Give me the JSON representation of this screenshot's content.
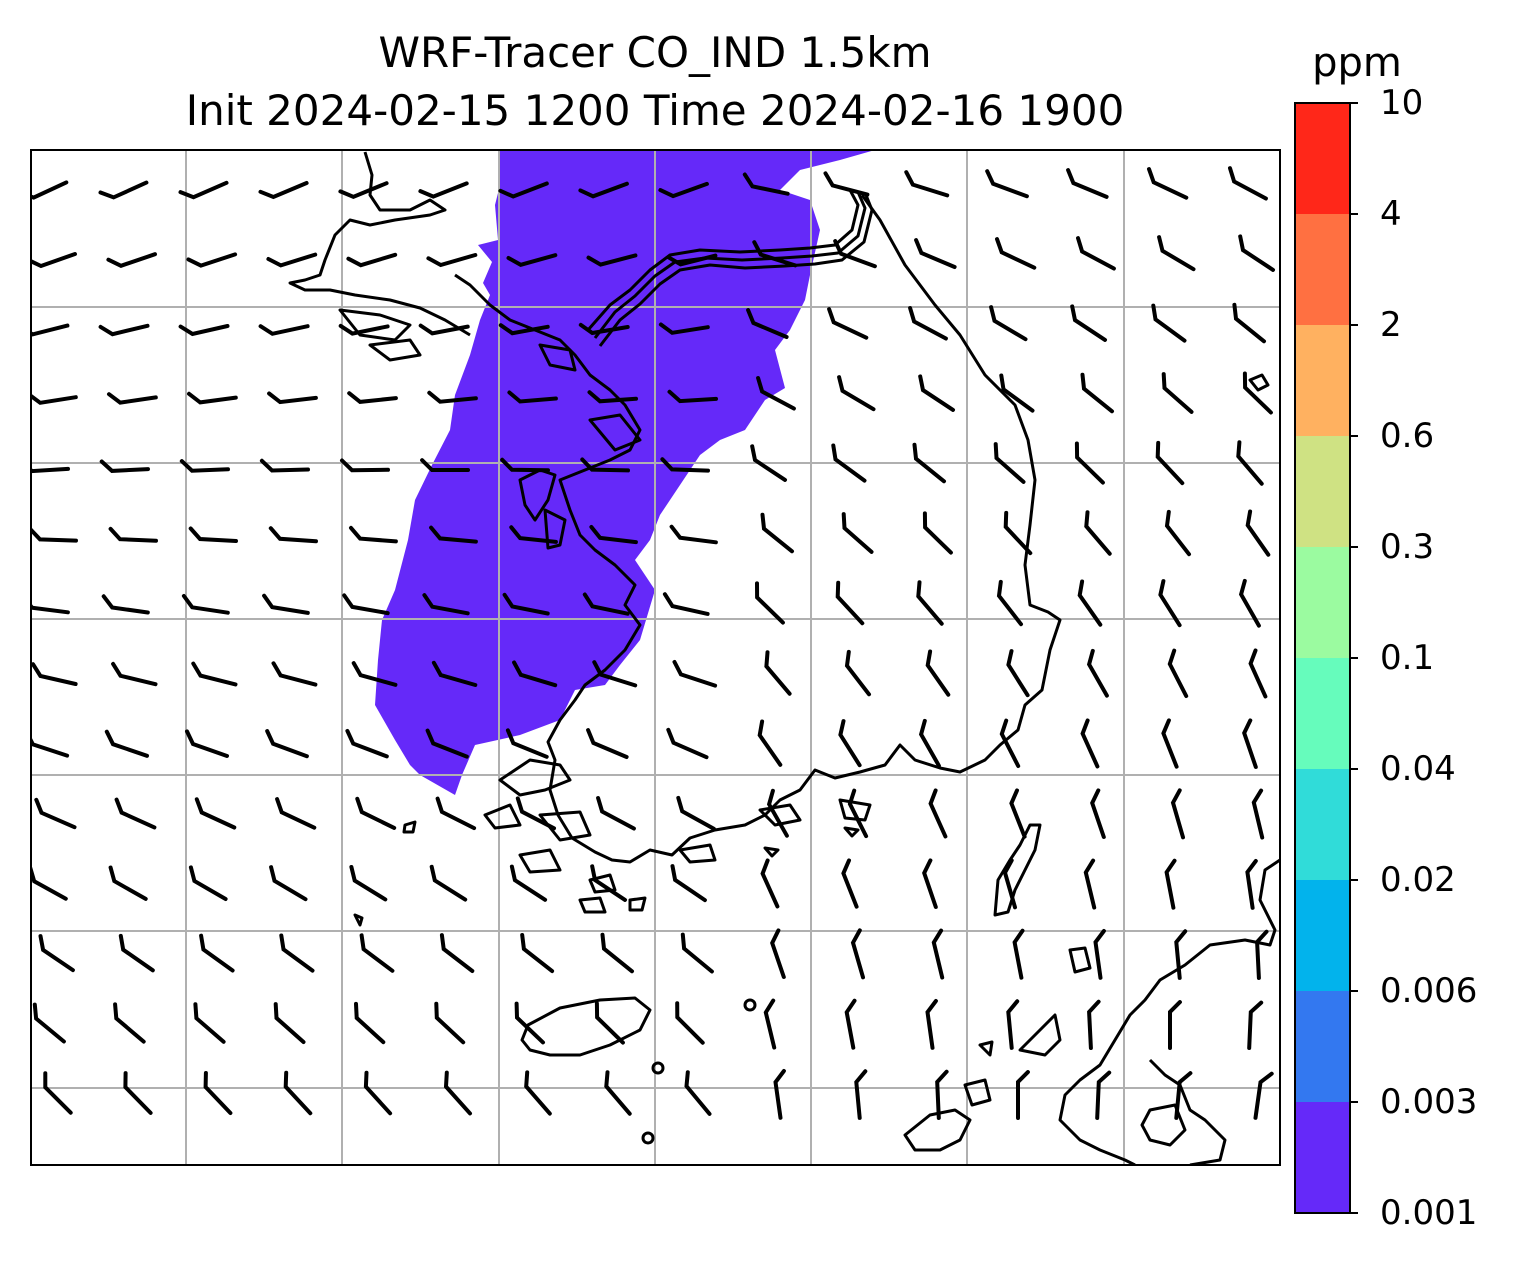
{
  "figure": {
    "title_line1": "WRF-Tracer CO_IND 1.5km",
    "title_line2": "Init 2024-02-15 1200 Time 2024-02-16 1900"
  },
  "colorbar": {
    "unit": "ppm",
    "levels": [
      "0.001",
      "0.003",
      "0.006",
      "0.02",
      "0.04",
      "0.1",
      "0.3",
      "0.6",
      "2",
      "4",
      "10"
    ],
    "colors": [
      "#6529f9",
      "#3378f0",
      "#02b3ec",
      "#30dcd9",
      "#66fcbc",
      "#9bfba0",
      "#cfe283",
      "#ffb160",
      "#ff7041",
      "#ff2719"
    ]
  },
  "map": {
    "region": "Korean Peninsula",
    "field": "CO_IND",
    "plume_color": "#6529f9",
    "plume_level_ppm": "0.001-0.003",
    "coastline_color": "#000000",
    "gridline_color": "#b0b0b0",
    "wind_barbs": "present"
  }
}
